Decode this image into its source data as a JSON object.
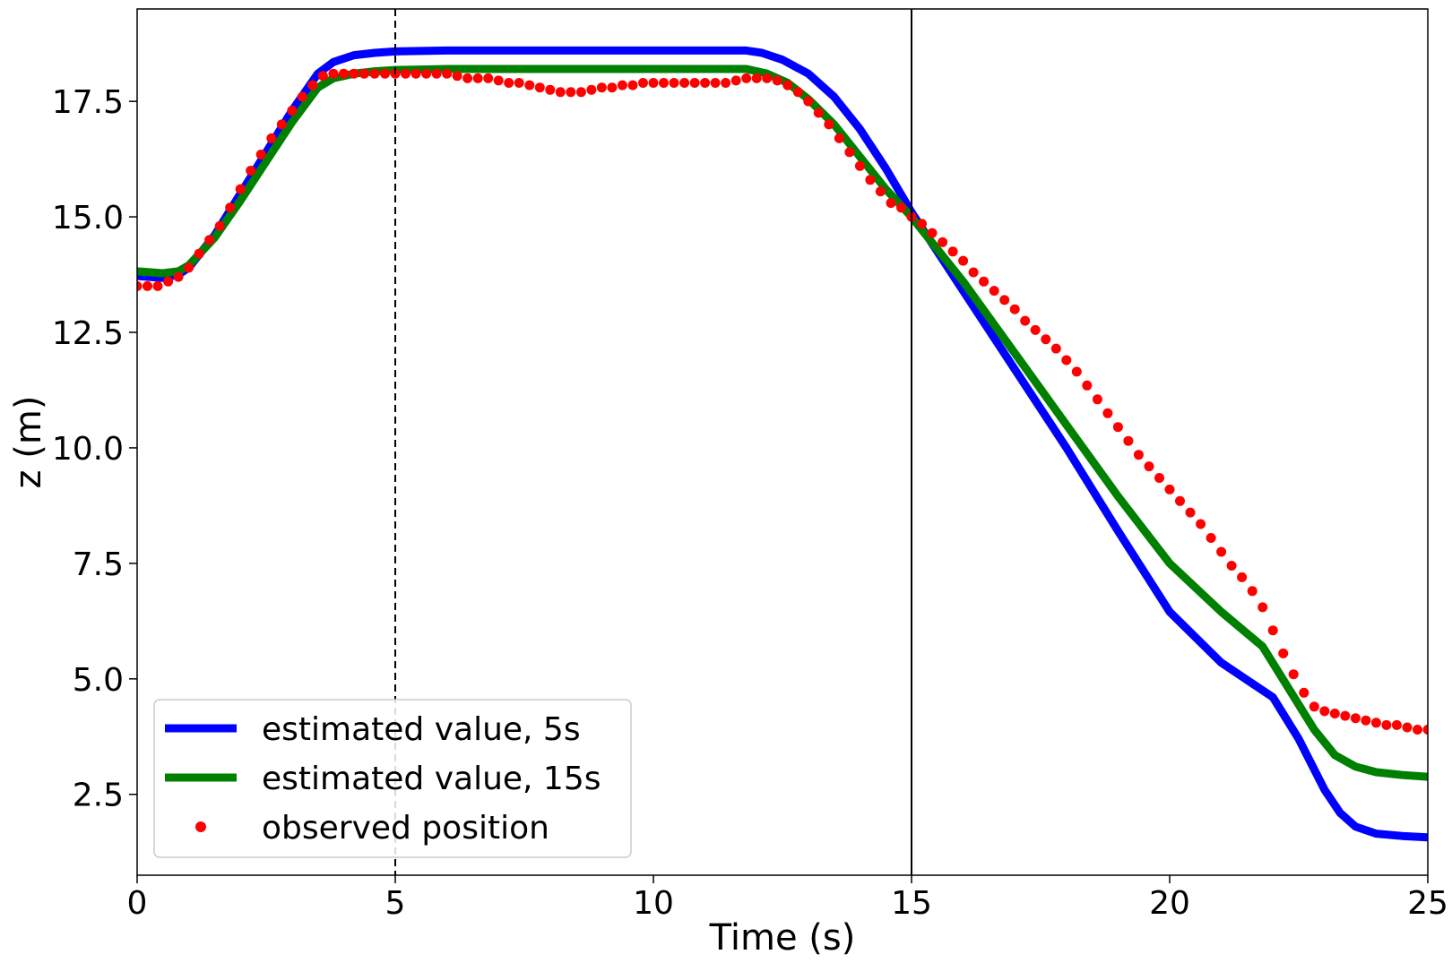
{
  "chart_data": {
    "type": "line",
    "xlabel": "Time (s)",
    "ylabel": "z (m)",
    "xlim": [
      0,
      25
    ],
    "ylim": [
      0.75,
      19.5
    ],
    "grid": false,
    "legend_position": "lower-left",
    "x_ticks": [
      {
        "value": 0,
        "label": "0"
      },
      {
        "value": 5,
        "label": "5"
      },
      {
        "value": 10,
        "label": "10"
      },
      {
        "value": 15,
        "label": "15"
      },
      {
        "value": 20,
        "label": "20"
      },
      {
        "value": 25,
        "label": "25"
      }
    ],
    "y_ticks": [
      {
        "value": 2.5,
        "label": "2.5"
      },
      {
        "value": 5.0,
        "label": "5.0"
      },
      {
        "value": 7.5,
        "label": "7.5"
      },
      {
        "value": 10.0,
        "label": "10.0"
      },
      {
        "value": 12.5,
        "label": "12.5"
      },
      {
        "value": 15.0,
        "label": "15.0"
      },
      {
        "value": 17.5,
        "label": "17.5"
      }
    ],
    "vlines": [
      {
        "x": 5,
        "style": "dashed",
        "color": "#000000"
      },
      {
        "x": 15,
        "style": "solid",
        "color": "#000000"
      }
    ],
    "series": [
      {
        "name": "estimated value, 5s",
        "kind": "line",
        "color": "#0000ff",
        "x": [
          0,
          0.5,
          0.8,
          1,
          1.5,
          2,
          2.5,
          3,
          3.5,
          3.8,
          4.2,
          4.6,
          5,
          5.5,
          6,
          8,
          10,
          11.8,
          12.1,
          12.5,
          13,
          13.5,
          14,
          14.5,
          15,
          16,
          17,
          18,
          19,
          20,
          21,
          22,
          22.5,
          23,
          23.3,
          23.6,
          24,
          24.5,
          25
        ],
        "y": [
          13.72,
          13.68,
          13.75,
          13.9,
          14.6,
          15.5,
          16.4,
          17.3,
          18.1,
          18.35,
          18.5,
          18.55,
          18.58,
          18.59,
          18.6,
          18.6,
          18.6,
          18.6,
          18.55,
          18.4,
          18.1,
          17.6,
          16.9,
          16.05,
          15.1,
          13.4,
          11.7,
          10.0,
          8.2,
          6.45,
          5.35,
          4.6,
          3.7,
          2.6,
          2.1,
          1.8,
          1.65,
          1.6,
          1.57
        ]
      },
      {
        "name": "estimated value, 15s",
        "kind": "line",
        "color": "#008000",
        "x": [
          0,
          0.5,
          0.8,
          1,
          1.5,
          2,
          2.5,
          3,
          3.5,
          3.8,
          4.2,
          4.6,
          5,
          5.5,
          6,
          8,
          10,
          11.8,
          12.2,
          12.6,
          13,
          13.5,
          14,
          14.5,
          15,
          16,
          17,
          18,
          19,
          20,
          21,
          21.8,
          22.3,
          22.8,
          23.2,
          23.6,
          24,
          24.5,
          25
        ],
        "y": [
          13.82,
          13.78,
          13.82,
          13.95,
          14.55,
          15.35,
          16.2,
          17.05,
          17.8,
          18.0,
          18.1,
          18.15,
          18.18,
          18.19,
          18.2,
          18.2,
          18.2,
          18.2,
          18.1,
          17.9,
          17.55,
          17.0,
          16.3,
          15.6,
          15.0,
          13.6,
          12.05,
          10.5,
          8.95,
          7.5,
          6.45,
          5.7,
          4.8,
          3.9,
          3.35,
          3.1,
          2.98,
          2.92,
          2.88
        ]
      },
      {
        "name": "observed position",
        "kind": "scatter",
        "color": "#ff0000",
        "x": [
          0,
          0.2,
          0.4,
          0.6,
          0.8,
          1.0,
          1.2,
          1.4,
          1.6,
          1.8,
          2.0,
          2.2,
          2.4,
          2.6,
          2.8,
          3.0,
          3.2,
          3.4,
          3.6,
          3.8,
          4.0,
          4.2,
          4.4,
          4.6,
          4.8,
          5.0,
          5.2,
          5.4,
          5.6,
          5.8,
          6.0,
          6.2,
          6.4,
          6.6,
          6.8,
          7.0,
          7.2,
          7.4,
          7.6,
          7.8,
          8.0,
          8.2,
          8.4,
          8.6,
          8.8,
          9.0,
          9.2,
          9.4,
          9.6,
          9.8,
          10.0,
          10.2,
          10.4,
          10.6,
          10.8,
          11.0,
          11.2,
          11.4,
          11.6,
          11.8,
          12.0,
          12.2,
          12.4,
          12.6,
          12.8,
          13.0,
          13.2,
          13.4,
          13.6,
          13.8,
          14.0,
          14.2,
          14.4,
          14.6,
          14.8,
          15.0,
          15.2,
          15.4,
          15.6,
          15.8,
          16.0,
          16.2,
          16.4,
          16.6,
          16.8,
          17.0,
          17.2,
          17.4,
          17.6,
          17.8,
          18.0,
          18.2,
          18.4,
          18.6,
          18.8,
          19.0,
          19.2,
          19.4,
          19.6,
          19.8,
          20.0,
          20.2,
          20.4,
          20.6,
          20.8,
          21.0,
          21.2,
          21.4,
          21.6,
          21.8,
          22.0,
          22.2,
          22.4,
          22.6,
          22.8,
          23.0,
          23.2,
          23.4,
          23.6,
          23.8,
          24.0,
          24.2,
          24.4,
          24.6,
          24.8,
          25.0
        ],
        "y": [
          13.5,
          13.5,
          13.5,
          13.6,
          13.7,
          13.9,
          14.2,
          14.5,
          14.8,
          15.2,
          15.6,
          16.0,
          16.35,
          16.7,
          17.0,
          17.3,
          17.6,
          17.85,
          18.05,
          18.1,
          18.1,
          18.1,
          18.1,
          18.1,
          18.1,
          18.1,
          18.1,
          18.1,
          18.1,
          18.1,
          18.1,
          18.05,
          18.0,
          18.0,
          18.0,
          17.95,
          17.9,
          17.9,
          17.85,
          17.8,
          17.75,
          17.7,
          17.7,
          17.7,
          17.75,
          17.8,
          17.8,
          17.85,
          17.85,
          17.9,
          17.9,
          17.9,
          17.9,
          17.9,
          17.9,
          17.9,
          17.9,
          17.9,
          17.95,
          18.0,
          18.0,
          18.0,
          17.95,
          17.85,
          17.7,
          17.5,
          17.25,
          17.0,
          16.7,
          16.4,
          16.1,
          15.8,
          15.55,
          15.3,
          15.2,
          15.0,
          14.85,
          14.65,
          14.45,
          14.25,
          14.05,
          13.8,
          13.6,
          13.4,
          13.2,
          13.0,
          12.75,
          12.55,
          12.35,
          12.15,
          11.9,
          11.65,
          11.35,
          11.05,
          10.75,
          10.45,
          10.15,
          9.85,
          9.6,
          9.35,
          9.1,
          8.85,
          8.6,
          8.35,
          8.05,
          7.75,
          7.45,
          7.2,
          6.9,
          6.55,
          6.05,
          5.55,
          5.1,
          4.7,
          4.4,
          4.3,
          4.25,
          4.2,
          4.15,
          4.1,
          4.05,
          4.0,
          4.0,
          3.95,
          3.9,
          3.9
        ]
      }
    ]
  }
}
